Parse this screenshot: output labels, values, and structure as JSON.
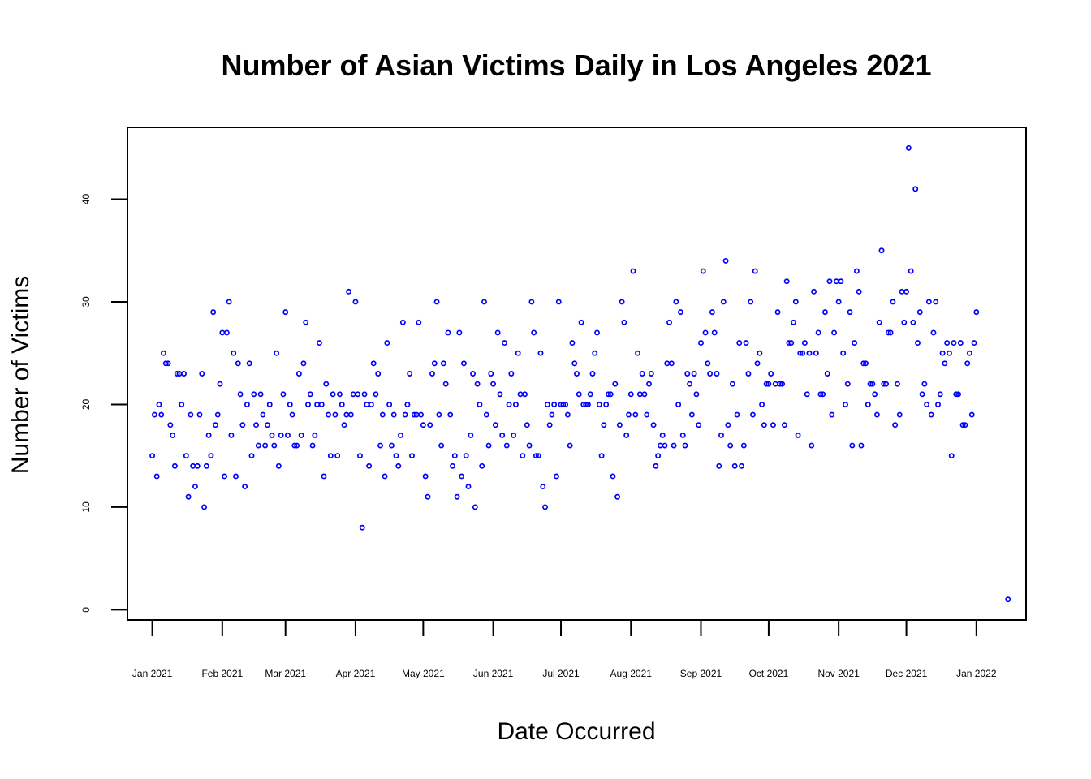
{
  "chart_data": {
    "type": "scatter",
    "title": "Number of Asian Victims Daily in Los Angeles 2021",
    "xlabel": "Date Occurred",
    "ylabel": "Number of Victims",
    "x_type": "date",
    "xlim": [
      "2020-12-21",
      "2022-01-23"
    ],
    "ylim": [
      -1,
      47
    ],
    "x_ticks": [
      {
        "date": "2021-01-01",
        "label": "Jan 2021"
      },
      {
        "date": "2021-02-01",
        "label": "Feb 2021"
      },
      {
        "date": "2021-03-01",
        "label": "Mar 2021"
      },
      {
        "date": "2021-04-01",
        "label": "Apr 2021"
      },
      {
        "date": "2021-05-01",
        "label": "May 2021"
      },
      {
        "date": "2021-06-01",
        "label": "Jun 2021"
      },
      {
        "date": "2021-07-01",
        "label": "Jul 2021"
      },
      {
        "date": "2021-08-01",
        "label": "Aug 2021"
      },
      {
        "date": "2021-09-01",
        "label": "Sep 2021"
      },
      {
        "date": "2021-10-01",
        "label": "Oct 2021"
      },
      {
        "date": "2021-11-01",
        "label": "Nov 2021"
      },
      {
        "date": "2021-12-01",
        "label": "Dec 2021"
      },
      {
        "date": "2022-01-01",
        "label": "Jan 2022"
      }
    ],
    "y_ticks": [
      0,
      10,
      20,
      30,
      40
    ],
    "grid": false,
    "legend": "none",
    "point_color": "#0000ff",
    "start_date": "2021-01-01",
    "daily_values": [
      15,
      19,
      13,
      20,
      19,
      25,
      24,
      24,
      18,
      17,
      14,
      23,
      23,
      20,
      23,
      15,
      11,
      19,
      14,
      12,
      14,
      19,
      23,
      10,
      14,
      17,
      15,
      29,
      18,
      19,
      22,
      27,
      13,
      27,
      30,
      17,
      25,
      13,
      24,
      21,
      18,
      12,
      20,
      24,
      15,
      21,
      18,
      16,
      21,
      19,
      16,
      18,
      20,
      17,
      16,
      25,
      14,
      17,
      21,
      29,
      17,
      20,
      19,
      16,
      16,
      23,
      17,
      24,
      28,
      20,
      21,
      16,
      17,
      20,
      26,
      20,
      13,
      22,
      19,
      15,
      21,
      19,
      15,
      21,
      20,
      18,
      19,
      31,
      19,
      21,
      30,
      21,
      15,
      8,
      21,
      20,
      14,
      20,
      24,
      21,
      23,
      16,
      19,
      13,
      26,
      20,
      16,
      19,
      15,
      14,
      17,
      28,
      19,
      20,
      23,
      15,
      19,
      19,
      28,
      19,
      18,
      13,
      11,
      18,
      23,
      24,
      30,
      19,
      16,
      24,
      22,
      27,
      19,
      14,
      15,
      11,
      27,
      13,
      24,
      15,
      12,
      17,
      23,
      10,
      22,
      20,
      14,
      30,
      19,
      16,
      23,
      22,
      18,
      27,
      21,
      17,
      26,
      16,
      20,
      23,
      17,
      20,
      25,
      21,
      15,
      21,
      18,
      16,
      30,
      27,
      15,
      15,
      25,
      12,
      10,
      20,
      18,
      19,
      20,
      13,
      30,
      20,
      20,
      20,
      19,
      16,
      26,
      24,
      23,
      21,
      28,
      20,
      20,
      20,
      21,
      23,
      25,
      27,
      20,
      15,
      18,
      20,
      21,
      21,
      13,
      22,
      11,
      18,
      30,
      28,
      17,
      19,
      21,
      33,
      19,
      25,
      21,
      23,
      21,
      19,
      22,
      23,
      18,
      14,
      15,
      16,
      17,
      16,
      24,
      28,
      24,
      16,
      30,
      20,
      29,
      17,
      16,
      23,
      22,
      19,
      23,
      21,
      18,
      26,
      33,
      27,
      24,
      23,
      29,
      27,
      23,
      14,
      17,
      30,
      34,
      18,
      16,
      22,
      14,
      19,
      26,
      14,
      16,
      26,
      23,
      30,
      19,
      33,
      24,
      25,
      20,
      18,
      22,
      22,
      23,
      18,
      22,
      29,
      22,
      22,
      18,
      32,
      26,
      26,
      28,
      30,
      17,
      25,
      25,
      26,
      21,
      25,
      16,
      31,
      25,
      27,
      21,
      21,
      29,
      23,
      32,
      19,
      27,
      32,
      30,
      32,
      25,
      20,
      22,
      29,
      16,
      26,
      33,
      31,
      16,
      24,
      24,
      20,
      22,
      22,
      21,
      19,
      28,
      35,
      22,
      22,
      27,
      27,
      30,
      18,
      22,
      19,
      31,
      28,
      31,
      45,
      33,
      28,
      41,
      26,
      29,
      21,
      22,
      20,
      30,
      19,
      27,
      30,
      20,
      21,
      25,
      24,
      26,
      25,
      15,
      26,
      21,
      21,
      26,
      18,
      18,
      24,
      25,
      19,
      26,
      29
    ],
    "extra_points": [
      {
        "date": "2022-01-15",
        "value": 1
      }
    ]
  }
}
